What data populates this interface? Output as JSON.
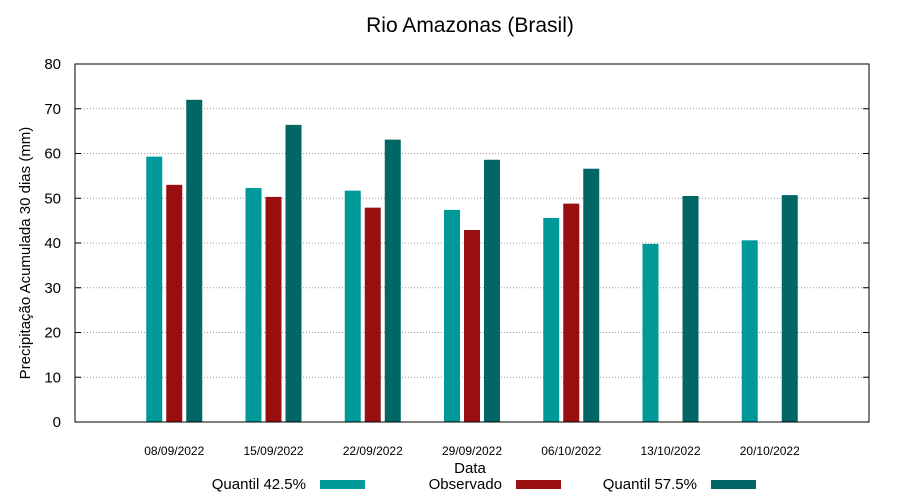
{
  "chart_data": {
    "type": "bar",
    "title": "Rio Amazonas (Brasil)",
    "xlabel": "Data",
    "ylabel": "Precipitação Acumulada 30 dias (mm)",
    "ylim": [
      0,
      80
    ],
    "yticks": [
      "0",
      "10",
      "20",
      "30",
      "40",
      "50",
      "60",
      "70",
      "80"
    ],
    "grid": true,
    "legend_position": "bottom",
    "categories": [
      "08/09/2022",
      "15/09/2022",
      "22/09/2022",
      "29/09/2022",
      "06/10/2022",
      "13/10/2022",
      "20/10/2022"
    ],
    "series": [
      {
        "name": "Quantil 42.5%",
        "color": "#009999",
        "values": [
          59.3,
          52.3,
          51.7,
          47.4,
          45.6,
          39.8,
          40.6
        ]
      },
      {
        "name": "Observado",
        "color": "#990f0f",
        "values": [
          53.0,
          50.3,
          47.9,
          42.9,
          48.8,
          null,
          null
        ]
      },
      {
        "name": "Quantil 57.5%",
        "color": "#006666",
        "values": [
          72.0,
          66.4,
          63.1,
          58.6,
          56.6,
          50.5,
          50.7
        ]
      }
    ]
  }
}
